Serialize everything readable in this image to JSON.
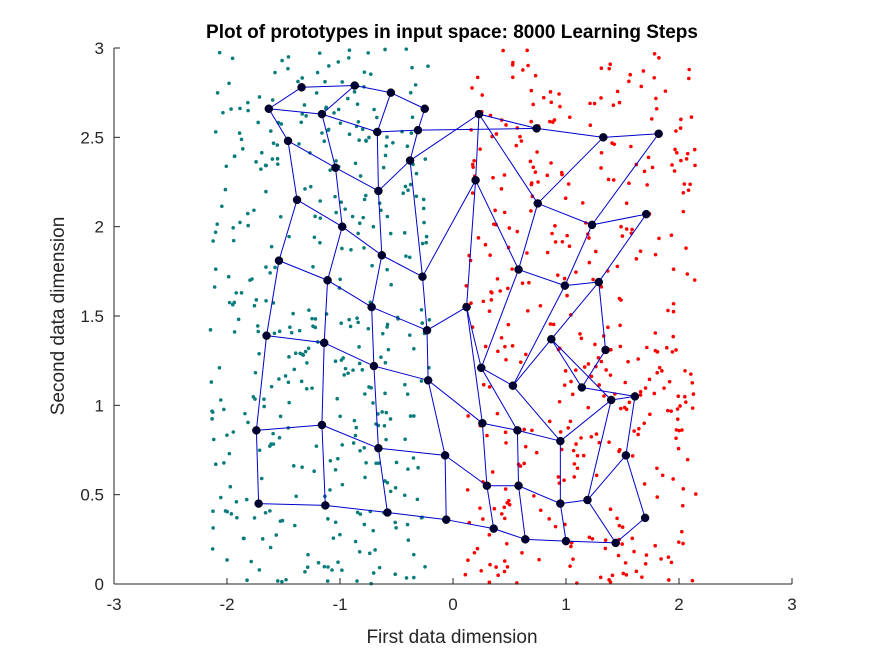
{
  "chart_data": {
    "type": "scatter",
    "title": "Plot of prototypes in input space: 8000 Learning Steps",
    "xlabel": "First data dimension",
    "ylabel": "Second data dimension",
    "xlim": [
      -3,
      3
    ],
    "ylim": [
      0,
      3
    ],
    "x_ticks": [
      "-3",
      "-2",
      "-1",
      "0",
      "1",
      "2",
      "3"
    ],
    "y_ticks": [
      "0",
      "0.5",
      "1",
      "1.5",
      "2",
      "2.5",
      "3"
    ],
    "grid": false,
    "legend": "none",
    "colors": {
      "class_left": "#0b7b7b",
      "class_right": "#ff0000",
      "prototypes": "#000033",
      "lattice": "#0000cc",
      "axes": "#262626"
    },
    "data_points": {
      "class_left_x_range": [
        -2.15,
        -0.2
      ],
      "class_right_x_range": [
        0.1,
        2.15
      ],
      "y_range": [
        0,
        3
      ],
      "count_each": 400
    },
    "prototype_grid": [
      [
        [
          -1.72,
          0.45
        ],
        [
          -1.13,
          0.44
        ],
        [
          -0.58,
          0.4
        ],
        [
          -0.06,
          0.36
        ],
        [
          0.36,
          0.31
        ],
        [
          0.64,
          0.25
        ],
        [
          1.0,
          0.24
        ],
        [
          1.44,
          0.23
        ],
        [
          1.7,
          0.37
        ]
      ],
      [
        [
          -1.74,
          0.86
        ],
        [
          -1.16,
          0.89
        ],
        [
          -0.66,
          0.76
        ],
        [
          -0.07,
          0.72
        ],
        [
          0.3,
          0.55
        ],
        [
          0.58,
          0.55
        ],
        [
          0.95,
          0.45
        ],
        [
          1.19,
          0.47
        ],
        [
          1.53,
          0.72
        ]
      ],
      [
        [
          -1.65,
          1.39
        ],
        [
          -1.14,
          1.35
        ],
        [
          -0.7,
          1.22
        ],
        [
          -0.22,
          1.14
        ],
        [
          0.26,
          0.9
        ],
        [
          0.57,
          0.86
        ],
        [
          0.95,
          0.8
        ],
        [
          1.4,
          1.03
        ],
        [
          1.61,
          1.05
        ]
      ],
      [
        [
          -1.54,
          1.81
        ],
        [
          -1.11,
          1.7
        ],
        [
          -0.72,
          1.55
        ],
        [
          -0.23,
          1.42
        ],
        [
          0.12,
          1.55
        ],
        [
          0.25,
          1.21
        ],
        [
          0.53,
          1.11
        ],
        [
          0.87,
          1.37
        ],
        [
          1.14,
          1.1
        ]
      ],
      [
        [
          -1.38,
          2.15
        ],
        [
          -0.98,
          2.0
        ],
        [
          -0.63,
          1.84
        ],
        [
          -0.27,
          1.72
        ],
        [
          0.2,
          2.26
        ],
        [
          0.58,
          1.76
        ],
        [
          0.99,
          1.67
        ],
        [
          1.29,
          1.69
        ],
        [
          1.35,
          1.31
        ]
      ],
      [
        [
          -1.46,
          2.48
        ],
        [
          -1.04,
          2.33
        ],
        [
          -0.66,
          2.2
        ],
        [
          -0.38,
          2.37
        ],
        [
          0.23,
          2.63
        ],
        [
          0.75,
          2.13
        ],
        [
          1.23,
          2.01
        ],
        [
          1.71,
          2.07
        ]
      ],
      [
        [
          -1.63,
          2.66
        ],
        [
          -1.16,
          2.63
        ],
        [
          -0.67,
          2.53
        ],
        [
          -0.31,
          2.54
        ],
        [
          0.74,
          2.55
        ],
        [
          1.33,
          2.5
        ],
        [
          1.82,
          2.52
        ]
      ],
      [
        [
          -1.34,
          2.78
        ],
        [
          -0.87,
          2.79
        ],
        [
          -0.55,
          2.75
        ],
        [
          -0.25,
          2.66
        ]
      ]
    ]
  }
}
